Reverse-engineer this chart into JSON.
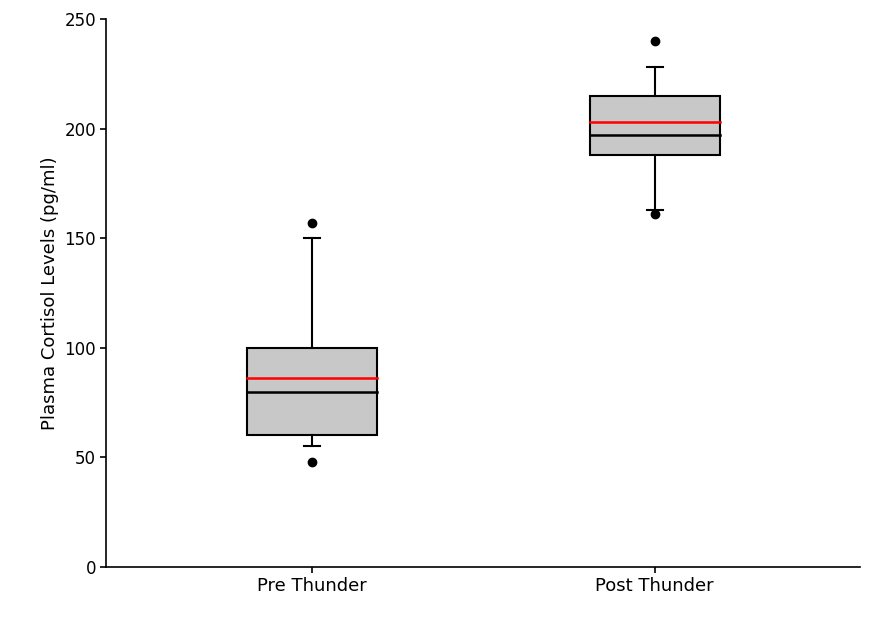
{
  "categories": [
    "Pre Thunder",
    "Post Thunder"
  ],
  "pre_thunder": {
    "q1": 60,
    "q3": 100,
    "median": 80,
    "mean": 86,
    "whisker_low": 55,
    "whisker_high": 150,
    "outliers": [
      48,
      157
    ]
  },
  "post_thunder": {
    "q1": 188,
    "q3": 215,
    "median": 197,
    "mean": 203,
    "whisker_low": 163,
    "whisker_high": 228,
    "outliers": [
      161,
      240
    ]
  },
  "ylabel": "Plasma Cortisol Levels (pg/ml)",
  "ylim": [
    0,
    250
  ],
  "yticks": [
    0,
    50,
    100,
    150,
    200,
    250
  ],
  "box_color": "#C8C8C8",
  "box_edge_color": "#000000",
  "median_color": "#000000",
  "mean_color": "#FF0000",
  "whisker_color": "#000000",
  "outlier_color": "#000000",
  "background_color": "#FFFFFF",
  "box_width": 0.38,
  "line_width": 1.5,
  "outlier_marker": "o",
  "outlier_size": 6,
  "positions": [
    1,
    2
  ],
  "xlim": [
    0.4,
    2.6
  ],
  "figsize": [
    8.87,
    6.3
  ],
  "dpi": 100
}
